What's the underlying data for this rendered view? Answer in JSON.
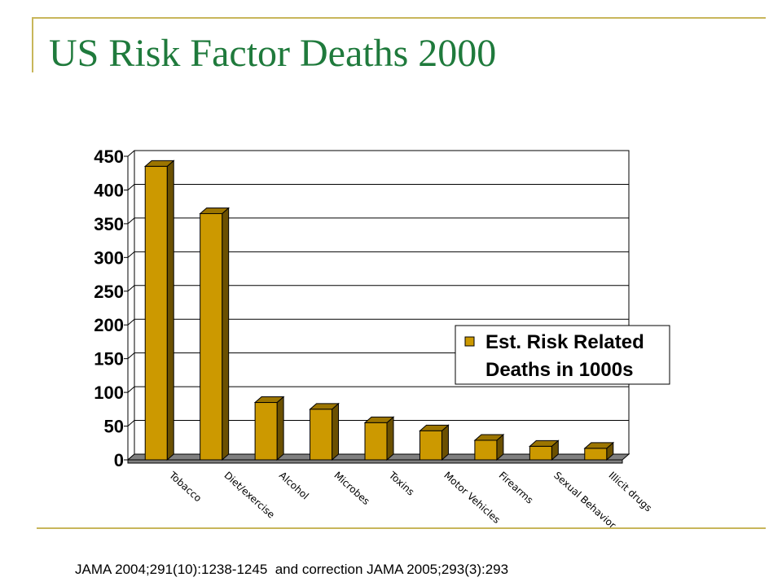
{
  "slide": {
    "title": "US Risk Factor Deaths 2000",
    "source": "JAMA 2004;291(10):1238-1245  and correction JAMA 2005;293(3):293"
  },
  "colors": {
    "title": "#1f7a3c",
    "rule": "#c8b65b",
    "bar_front": "#cc9900",
    "bar_side": "#6b5000",
    "bar_top": "#9c7500",
    "floor": "#808080"
  },
  "chart_data": {
    "type": "bar",
    "title": "",
    "xlabel": "",
    "ylabel": "",
    "categories": [
      "Tobacco",
      "Diet/exercise",
      "Alcohol",
      "Microbes",
      "Toxins",
      "Motor Vehicles",
      "Firearms",
      "Sexual Behavior",
      "Illicit drugs"
    ],
    "series": [
      {
        "name": "Est. Risk Related Deaths in 1000s",
        "values": [
          435,
          365,
          85,
          75,
          55,
          43,
          29,
          20,
          17
        ]
      }
    ],
    "ylim": [
      0,
      450
    ],
    "yticks": [
      "0",
      "50",
      "100",
      "150",
      "200",
      "250",
      "300",
      "350",
      "400",
      "450"
    ],
    "grid": true,
    "legend": {
      "position": "right",
      "lines": [
        "Est. Risk Related",
        "Deaths in 1000s"
      ]
    }
  }
}
